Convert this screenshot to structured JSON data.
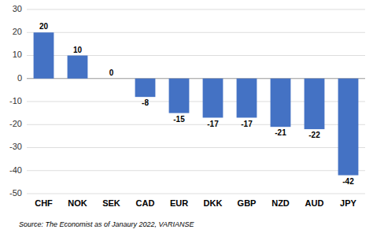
{
  "chart_data": {
    "type": "bar",
    "categories": [
      "CHF",
      "NOK",
      "SEK",
      "CAD",
      "EUR",
      "DKK",
      "GBP",
      "NZD",
      "AUD",
      "JPY"
    ],
    "values": [
      20,
      10,
      0,
      -8,
      -15,
      -17,
      -17,
      -21,
      -22,
      -42
    ],
    "color": "#4472C4",
    "ylim": [
      -50,
      30
    ],
    "yticks": [
      -50,
      -40,
      -30,
      -20,
      -10,
      0,
      10,
      20,
      30
    ],
    "grid": true,
    "data_labels": true,
    "source": "Source: The Economist as of Janaury 2022, VARIANSE"
  }
}
